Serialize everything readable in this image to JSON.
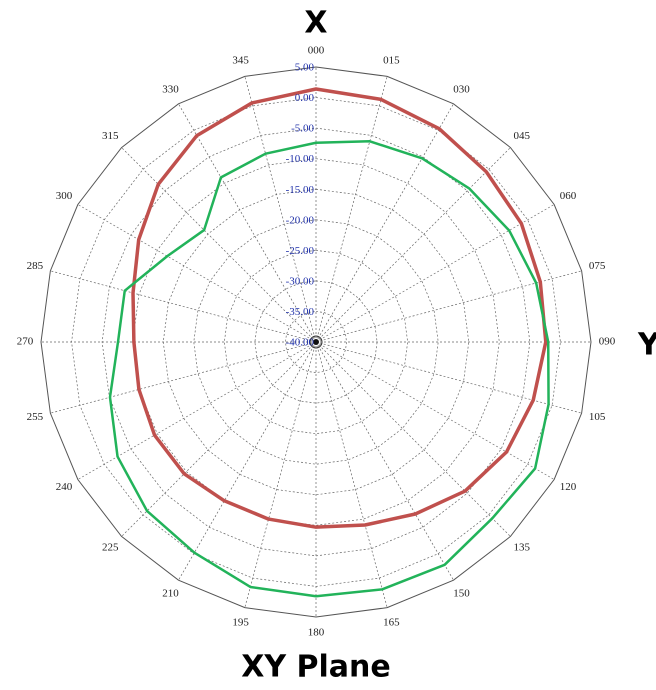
{
  "chart_data": {
    "type": "polar",
    "title": "XY Plane",
    "annotations": [
      "X",
      "Y"
    ],
    "categories": [
      "000",
      "015",
      "030",
      "045",
      "060",
      "075",
      "090",
      "105",
      "120",
      "135",
      "150",
      "165",
      "180",
      "195",
      "210",
      "225",
      "240",
      "255",
      "270",
      "285",
      "300",
      "315",
      "330",
      "345"
    ],
    "rlim": [
      -40,
      5
    ],
    "rticks": [
      {
        "value": 5,
        "label": "5.00"
      },
      {
        "value": 0,
        "label": "0.00"
      },
      {
        "value": -5,
        "label": "-5.00"
      },
      {
        "value": -10,
        "label": "-10.00"
      },
      {
        "value": -15,
        "label": "-15.00"
      },
      {
        "value": -20,
        "label": "-20.00"
      },
      {
        "value": -25,
        "label": "-25.00"
      },
      {
        "value": -30,
        "label": "-30.00"
      },
      {
        "value": -35,
        "label": "-35.00"
      },
      {
        "value": -40,
        "label": "-40.00"
      }
    ],
    "grid": true,
    "series": [
      {
        "color": "#c0504d",
        "values": [
          1.4,
          1.1,
          0.3,
          -0.6,
          -1.2,
          -2.0,
          -2.4,
          -3.2,
          -4.0,
          -5.5,
          -7.5,
          -9.0,
          -9.7,
          -10.0,
          -10.0,
          -9.5,
          -9.5,
          -10.0,
          -10.2,
          -9.0,
          -6.5,
          -3.5,
          -1.0,
          0.5
        ]
      },
      {
        "color": "#22b35a",
        "values": [
          -7.4,
          -6.0,
          -5.3,
          -4.5,
          -3.5,
          -2.7,
          -2.0,
          -0.6,
          1.4,
          0.8,
          2.1,
          1.9,
          1.6,
          1.5,
          -0.2,
          -0.9,
          -2.5,
          -5.1,
          -7.6,
          -7.6,
          -11.9,
          -14.1,
          -8.9,
          -8.1
        ]
      }
    ]
  }
}
